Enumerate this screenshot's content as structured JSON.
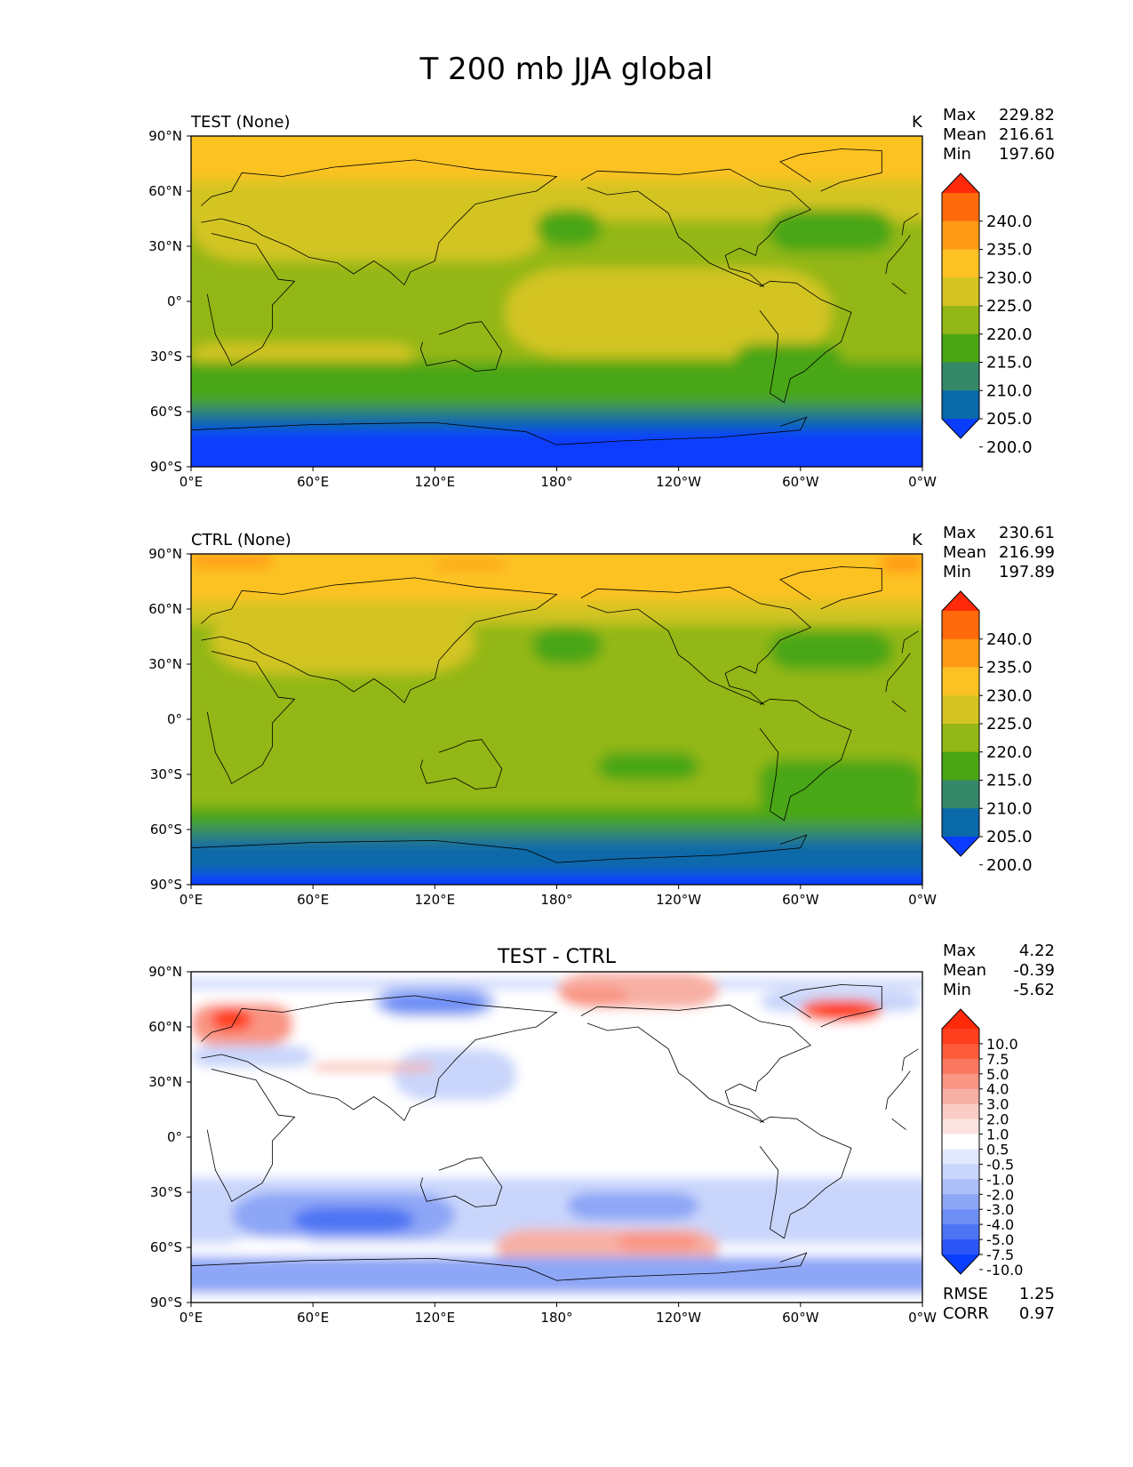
{
  "title": "T 200 mb JJA global",
  "chart_data": [
    {
      "type": "heatmap",
      "panel": "test",
      "title": "TEST (None)",
      "units": "K",
      "stats": [
        {
          "label": "Max",
          "value": "229.82"
        },
        {
          "label": "Mean",
          "value": "216.61"
        },
        {
          "label": "Min",
          "value": "197.60"
        }
      ],
      "x_ticks": [
        "0°E",
        "60°E",
        "120°E",
        "180°",
        "120°W",
        "60°W",
        "0°W"
      ],
      "y_ticks": [
        "90°N",
        "60°N",
        "30°N",
        "0°",
        "30°S",
        "60°S",
        "90°S"
      ],
      "xlim": [
        0,
        360
      ],
      "ylim": [
        -90,
        90
      ],
      "colorbar": {
        "levels": [
          "240.0",
          "235.0",
          "230.0",
          "225.0",
          "220.0",
          "215.0",
          "210.0",
          "205.0",
          "200.0"
        ],
        "colors": [
          "#ff2a0a",
          "#ff6a0c",
          "#ff9a14",
          "#fcc224",
          "#d3c423",
          "#93b716",
          "#4aa612",
          "#36886a",
          "#0a69a8",
          "#0a3dff"
        ],
        "extend": "both"
      }
    },
    {
      "type": "heatmap",
      "panel": "ctrl",
      "title": "CTRL (None)",
      "units": "K",
      "stats": [
        {
          "label": "Max",
          "value": "230.61"
        },
        {
          "label": "Mean",
          "value": "216.99"
        },
        {
          "label": "Min",
          "value": "197.89"
        }
      ],
      "x_ticks": [
        "0°E",
        "60°E",
        "120°E",
        "180°",
        "120°W",
        "60°W",
        "0°W"
      ],
      "y_ticks": [
        "90°N",
        "60°N",
        "30°N",
        "0°",
        "30°S",
        "60°S",
        "90°S"
      ],
      "xlim": [
        0,
        360
      ],
      "ylim": [
        -90,
        90
      ],
      "colorbar": {
        "levels": [
          "240.0",
          "235.0",
          "230.0",
          "225.0",
          "220.0",
          "215.0",
          "210.0",
          "205.0",
          "200.0"
        ],
        "colors": [
          "#ff2a0a",
          "#ff6a0c",
          "#ff9a14",
          "#fcc224",
          "#d3c423",
          "#93b716",
          "#4aa612",
          "#36886a",
          "#0a69a8",
          "#0a3dff"
        ],
        "extend": "both"
      }
    },
    {
      "type": "heatmap",
      "panel": "diff",
      "title": "TEST - CTRL",
      "units": "",
      "stats": [
        {
          "label": "Max",
          "value": "4.22"
        },
        {
          "label": "Mean",
          "value": "-0.39"
        },
        {
          "label": "Min",
          "value": "-5.62"
        }
      ],
      "metrics": [
        {
          "label": "RMSE",
          "value": "1.25"
        },
        {
          "label": "CORR",
          "value": "0.97"
        }
      ],
      "x_ticks": [
        "0°E",
        "60°E",
        "120°E",
        "180°",
        "120°W",
        "60°W",
        "0°W"
      ],
      "y_ticks": [
        "90°N",
        "60°N",
        "30°N",
        "0°",
        "30°S",
        "60°S",
        "90°S"
      ],
      "xlim": [
        0,
        360
      ],
      "ylim": [
        -90,
        90
      ],
      "colorbar": {
        "levels": [
          "10.0",
          "7.5",
          "5.0",
          "4.0",
          "3.0",
          "2.0",
          "1.0",
          "0.5",
          "-0.5",
          "-1.0",
          "-2.0",
          "-3.0",
          "-4.0",
          "-5.0",
          "-7.5",
          "-10.0"
        ],
        "colors": [
          "#ff2a0a",
          "#ff3f1d",
          "#fd5b3c",
          "#fb7860",
          "#f99584",
          "#f8b0a4",
          "#f9cdc5",
          "#fbe4e0",
          "#ffffff",
          "#e3e9fc",
          "#c9d5fb",
          "#abbef8",
          "#8da6f6",
          "#6d8ef5",
          "#4d74f3",
          "#2c55f5",
          "#0a3dff"
        ],
        "extend": "both"
      }
    }
  ]
}
